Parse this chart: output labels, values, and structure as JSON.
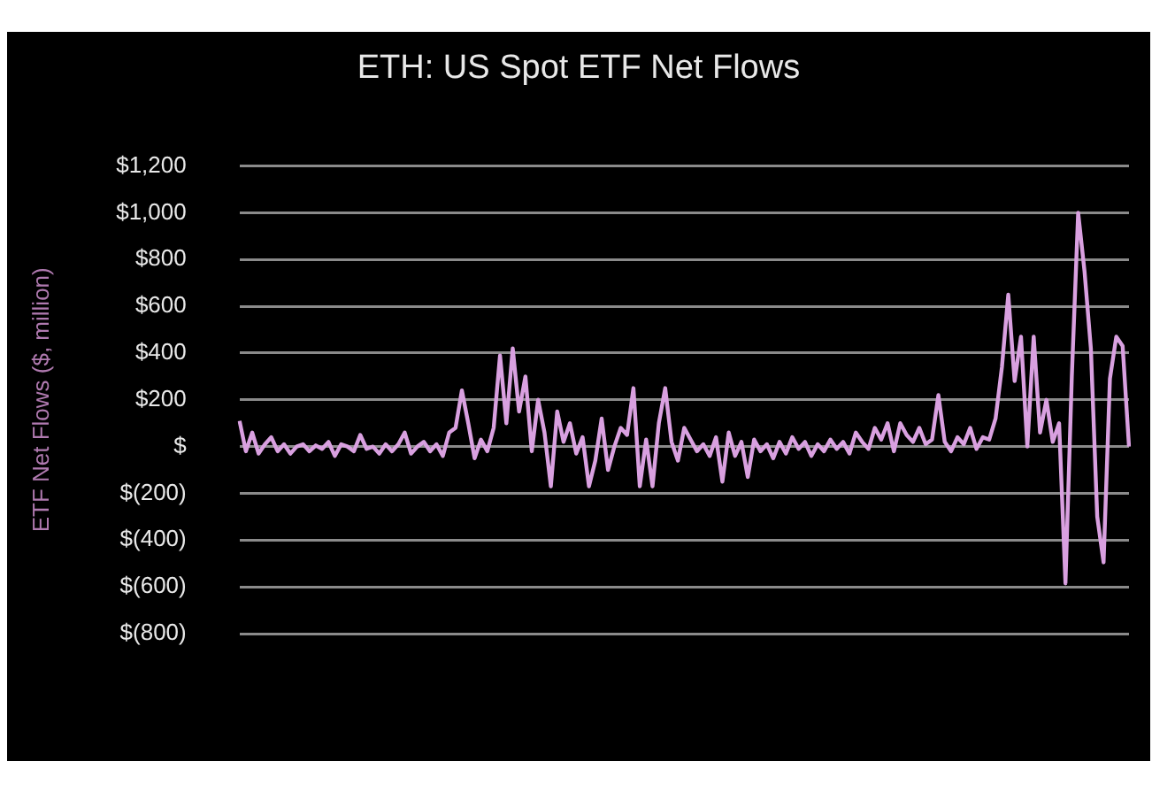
{
  "chart_data": {
    "type": "line",
    "title": "ETH: US Spot ETF Net Flows",
    "ylabel": "ETF Net Flows ($, million)",
    "categories": [
      null,
      null,
      null,
      null,
      null,
      null,
      null,
      null,
      null,
      null,
      null,
      null,
      null,
      null,
      null,
      null,
      null,
      null,
      null,
      null,
      null,
      null,
      null,
      null,
      null,
      null,
      null,
      null,
      null,
      null,
      null,
      null,
      null,
      null,
      null,
      null,
      null,
      null,
      null,
      null,
      null,
      null,
      null,
      null,
      null,
      null,
      null,
      null,
      null,
      null,
      null,
      null,
      null,
      null,
      null,
      null,
      null,
      null,
      null,
      null,
      null,
      null,
      null,
      null,
      null,
      null,
      null,
      null,
      null,
      null,
      null,
      null,
      null,
      null,
      null,
      null,
      null,
      null,
      null,
      null,
      null,
      null,
      null,
      null,
      null,
      null,
      null,
      null,
      null,
      null,
      null,
      null,
      null,
      null,
      null,
      null,
      null,
      null,
      null,
      null,
      null,
      null,
      null,
      null,
      null,
      null,
      null,
      null,
      null,
      null,
      null,
      null,
      null,
      null,
      null,
      null,
      null,
      null,
      null,
      null,
      null,
      null,
      null,
      null,
      null,
      null,
      null,
      null,
      null,
      null,
      null,
      null,
      null,
      null,
      null,
      null,
      null,
      null,
      null,
      null,
      null
    ],
    "series": [
      {
        "color": "#d9a0e0",
        "values": [
          110,
          -20,
          60,
          -30,
          10,
          40,
          -20,
          10,
          -30,
          0,
          10,
          -20,
          5,
          -10,
          20,
          -40,
          10,
          0,
          -20,
          50,
          -10,
          0,
          -30,
          10,
          -20,
          10,
          60,
          -30,
          0,
          20,
          -20,
          10,
          -40,
          60,
          80,
          240,
          100,
          -50,
          30,
          -20,
          80,
          390,
          100,
          420,
          150,
          300,
          -20,
          200,
          60,
          -170,
          150,
          20,
          100,
          -30,
          40,
          -170,
          -60,
          120,
          -100,
          0,
          80,
          50,
          250,
          -170,
          30,
          -170,
          100,
          250,
          20,
          -60,
          80,
          30,
          -20,
          10,
          -40,
          40,
          -150,
          60,
          -40,
          20,
          -130,
          30,
          -20,
          10,
          -50,
          20,
          -30,
          40,
          -10,
          20,
          -40,
          10,
          -20,
          30,
          -10,
          20,
          -30,
          60,
          20,
          -10,
          80,
          30,
          100,
          -20,
          100,
          50,
          20,
          80,
          10,
          30,
          220,
          20,
          -20,
          40,
          10,
          80,
          -10,
          40,
          30,
          120,
          340,
          650,
          280,
          470,
          0,
          470,
          60,
          200,
          20,
          100,
          -585,
          300,
          1000,
          750,
          420,
          -300,
          -495,
          290,
          470,
          430,
          0
        ]
      }
    ],
    "ylim": [
      -800,
      1200
    ],
    "yticks": [
      {
        "value": -800,
        "label": "$(800)"
      },
      {
        "value": -600,
        "label": "$(600)"
      },
      {
        "value": -400,
        "label": "$(400)"
      },
      {
        "value": -200,
        "label": "$(200)"
      },
      {
        "value": 0,
        "label": "$"
      },
      {
        "value": 200,
        "label": "$200"
      },
      {
        "value": 400,
        "label": "$400"
      },
      {
        "value": 600,
        "label": "$600"
      },
      {
        "value": 800,
        "label": "$800"
      },
      {
        "value": 1000,
        "label": "$1,000"
      },
      {
        "value": 1200,
        "label": "$1,200"
      }
    ],
    "grid": "y",
    "legend": false,
    "tick_labels": "y",
    "marker": "none",
    "line_style": "solid"
  }
}
